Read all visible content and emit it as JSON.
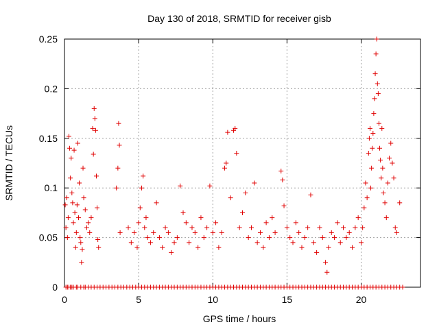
{
  "chart_data": {
    "type": "scatter",
    "title": "Day 130 of 2018, SRMTID for receiver gisb",
    "xlabel": "GPS time / hours",
    "ylabel": "SRMTID / TECUs",
    "xlim": [
      0,
      24
    ],
    "ylim": [
      0,
      0.25
    ],
    "x_ticks": [
      0,
      5,
      10,
      15,
      20
    ],
    "x_tick_labels": [
      "0",
      "5",
      "10",
      "15",
      "20"
    ],
    "y_ticks": [
      0,
      0.05,
      0.1,
      0.15,
      0.2,
      0.25
    ],
    "y_tick_labels": [
      "0",
      "0.05",
      "0.1",
      "0.15",
      "0.2",
      "0.25"
    ],
    "grid": true,
    "marker": "+",
    "color": "#e00000",
    "series": [
      {
        "points": [
          [
            0.05,
            0.083
          ],
          [
            0.1,
            0.06
          ],
          [
            0.15,
            0.09
          ],
          [
            0.2,
            0.05
          ],
          [
            0.25,
            0.07
          ],
          [
            0.3,
            0.152
          ],
          [
            0.35,
            0.14
          ],
          [
            0.4,
            0.11
          ],
          [
            0.45,
            0.13
          ],
          [
            0.5,
            0.095
          ],
          [
            0.55,
            0.085
          ],
          [
            0.6,
            0.065
          ],
          [
            0.65,
            0.138
          ],
          [
            0.7,
            0.075
          ],
          [
            0.75,
            0.04
          ],
          [
            0.8,
            0.055
          ],
          [
            0.85,
            0.083
          ],
          [
            0.9,
            0.145
          ],
          [
            0.95,
            0.07
          ],
          [
            1.0,
            0.105
          ],
          [
            1.05,
            0.05
          ],
          [
            1.1,
            0.045
          ],
          [
            1.15,
            0.025
          ],
          [
            1.2,
            0.038
          ],
          [
            1.25,
            0.12
          ],
          [
            1.3,
            0.09
          ],
          [
            1.4,
            0.078
          ],
          [
            1.5,
            0.06
          ],
          [
            1.6,
            0.065
          ],
          [
            1.7,
            0.055
          ],
          [
            1.8,
            0.07
          ],
          [
            1.9,
            0.16
          ],
          [
            1.95,
            0.134
          ],
          [
            2.0,
            0.18
          ],
          [
            2.05,
            0.17
          ],
          [
            2.1,
            0.158
          ],
          [
            2.15,
            0.112
          ],
          [
            2.2,
            0.08
          ],
          [
            2.25,
            0.048
          ],
          [
            2.3,
            0.04
          ],
          [
            3.5,
            0.1
          ],
          [
            3.6,
            0.12
          ],
          [
            3.65,
            0.165
          ],
          [
            3.7,
            0.143
          ],
          [
            3.75,
            0.055
          ],
          [
            4.3,
            0.06
          ],
          [
            4.5,
            0.045
          ],
          [
            4.7,
            0.055
          ],
          [
            4.9,
            0.04
          ],
          [
            5.0,
            0.065
          ],
          [
            5.1,
            0.08
          ],
          [
            5.2,
            0.1
          ],
          [
            5.3,
            0.112
          ],
          [
            5.4,
            0.06
          ],
          [
            5.5,
            0.07
          ],
          [
            5.6,
            0.05
          ],
          [
            5.8,
            0.045
          ],
          [
            6.0,
            0.055
          ],
          [
            6.2,
            0.085
          ],
          [
            6.4,
            0.05
          ],
          [
            6.6,
            0.04
          ],
          [
            6.8,
            0.06
          ],
          [
            7.0,
            0.055
          ],
          [
            7.2,
            0.035
          ],
          [
            7.4,
            0.045
          ],
          [
            7.6,
            0.05
          ],
          [
            7.8,
            0.102
          ],
          [
            8.0,
            0.075
          ],
          [
            8.2,
            0.065
          ],
          [
            8.4,
            0.045
          ],
          [
            8.6,
            0.06
          ],
          [
            8.8,
            0.055
          ],
          [
            9.0,
            0.04
          ],
          [
            9.2,
            0.07
          ],
          [
            9.4,
            0.05
          ],
          [
            9.6,
            0.06
          ],
          [
            9.8,
            0.102
          ],
          [
            10.0,
            0.055
          ],
          [
            10.2,
            0.065
          ],
          [
            10.4,
            0.04
          ],
          [
            10.6,
            0.055
          ],
          [
            10.8,
            0.12
          ],
          [
            10.9,
            0.125
          ],
          [
            11.0,
            0.156
          ],
          [
            11.2,
            0.09
          ],
          [
            11.4,
            0.158
          ],
          [
            11.5,
            0.16
          ],
          [
            11.6,
            0.135
          ],
          [
            11.8,
            0.06
          ],
          [
            12.0,
            0.075
          ],
          [
            12.2,
            0.095
          ],
          [
            12.4,
            0.05
          ],
          [
            12.6,
            0.06
          ],
          [
            12.8,
            0.105
          ],
          [
            13.0,
            0.045
          ],
          [
            13.2,
            0.055
          ],
          [
            13.4,
            0.04
          ],
          [
            13.6,
            0.065
          ],
          [
            13.8,
            0.05
          ],
          [
            14.0,
            0.07
          ],
          [
            14.2,
            0.055
          ],
          [
            14.6,
            0.117
          ],
          [
            14.7,
            0.108
          ],
          [
            14.8,
            0.082
          ],
          [
            15.0,
            0.06
          ],
          [
            15.2,
            0.05
          ],
          [
            15.4,
            0.045
          ],
          [
            15.6,
            0.065
          ],
          [
            15.8,
            0.055
          ],
          [
            16.0,
            0.04
          ],
          [
            16.2,
            0.05
          ],
          [
            16.4,
            0.06
          ],
          [
            16.6,
            0.093
          ],
          [
            16.8,
            0.045
          ],
          [
            17.0,
            0.035
          ],
          [
            17.2,
            0.06
          ],
          [
            17.4,
            0.05
          ],
          [
            17.6,
            0.025
          ],
          [
            17.7,
            0.015
          ],
          [
            17.8,
            0.04
          ],
          [
            18.0,
            0.055
          ],
          [
            18.2,
            0.05
          ],
          [
            18.4,
            0.065
          ],
          [
            18.6,
            0.045
          ],
          [
            18.8,
            0.06
          ],
          [
            19.0,
            0.05
          ],
          [
            19.2,
            0.055
          ],
          [
            19.4,
            0.04
          ],
          [
            19.6,
            0.06
          ],
          [
            19.8,
            0.07
          ],
          [
            20.0,
            0.045
          ],
          [
            20.1,
            0.06
          ],
          [
            20.2,
            0.08
          ],
          [
            20.3,
            0.105
          ],
          [
            20.4,
            0.09
          ],
          [
            20.5,
            0.135
          ],
          [
            20.55,
            0.15
          ],
          [
            20.6,
            0.16
          ],
          [
            20.65,
            0.1
          ],
          [
            20.7,
            0.12
          ],
          [
            20.75,
            0.14
          ],
          [
            20.8,
            0.155
          ],
          [
            20.85,
            0.175
          ],
          [
            20.9,
            0.19
          ],
          [
            20.95,
            0.215
          ],
          [
            21.0,
            0.235
          ],
          [
            21.05,
            0.25
          ],
          [
            21.1,
            0.205
          ],
          [
            21.15,
            0.195
          ],
          [
            21.2,
            0.165
          ],
          [
            21.25,
            0.14
          ],
          [
            21.3,
            0.128
          ],
          [
            21.35,
            0.11
          ],
          [
            21.4,
            0.16
          ],
          [
            21.45,
            0.12
          ],
          [
            21.5,
            0.095
          ],
          [
            21.6,
            0.085
          ],
          [
            21.7,
            0.07
          ],
          [
            21.8,
            0.105
          ],
          [
            21.9,
            0.13
          ],
          [
            22.0,
            0.145
          ],
          [
            22.1,
            0.125
          ],
          [
            22.2,
            0.11
          ],
          [
            22.3,
            0.06
          ],
          [
            22.4,
            0.055
          ],
          [
            22.6,
            0.085
          ]
        ]
      }
    ],
    "zero_points_x": [
      0.1,
      0.2,
      0.3,
      0.4,
      0.5,
      0.6,
      0.8,
      0.9,
      1.1,
      1.3,
      1.4,
      1.6,
      1.8,
      2.0,
      2.2,
      2.4,
      2.6,
      2.8,
      3.0,
      3.2,
      3.4,
      3.6,
      3.8,
      4.0,
      4.2,
      4.4,
      4.6,
      4.8,
      5.0,
      5.2,
      5.4,
      5.6,
      5.8,
      6.0,
      6.2,
      6.4,
      6.6,
      6.8,
      7.0,
      7.2,
      7.4,
      7.6,
      7.8,
      8.0,
      8.2,
      8.4,
      8.6,
      8.8,
      9.0,
      9.2,
      9.4,
      9.6,
      9.8,
      10.0,
      10.2,
      10.4,
      10.6,
      10.8,
      11.0,
      11.2,
      11.4,
      11.6,
      11.8,
      12.0,
      12.2,
      12.4,
      12.6,
      12.8,
      13.0,
      13.2,
      13.4,
      13.6,
      13.8,
      14.0,
      14.2,
      14.4,
      14.6,
      14.8,
      15.0,
      15.2,
      15.4,
      15.6,
      15.8,
      16.0,
      16.2,
      16.4,
      16.6,
      16.8,
      17.0,
      17.2,
      17.4,
      17.6,
      17.8,
      18.0,
      18.2,
      18.4,
      18.6,
      18.8,
      19.0,
      19.2,
      19.4,
      19.6,
      19.8,
      20.0,
      20.2,
      20.4,
      20.6,
      20.8,
      21.0,
      21.2,
      21.4,
      21.6,
      21.8,
      22.0,
      22.2,
      22.4,
      22.6,
      22.8
    ]
  }
}
